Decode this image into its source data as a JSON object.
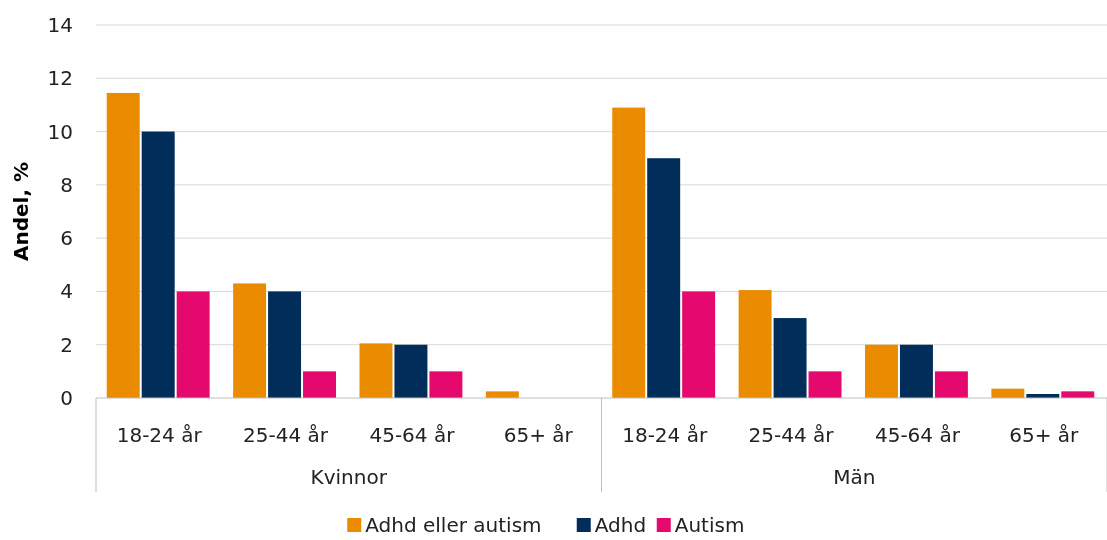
{
  "chart_data": {
    "type": "bar",
    "ylabel": "Andel, %",
    "categories": [
      "18-24 år",
      "25-44 år",
      "45-64 år",
      "65+ år",
      "18-24 år",
      "25-44 år",
      "45-64 år",
      "65+ år"
    ],
    "series": [
      {
        "name": "Adhd eller autism",
        "color": "#eb8c00",
        "values": [
          11.45,
          4.3,
          2.05,
          0.25,
          10.9,
          4.05,
          2,
          0.35
        ]
      },
      {
        "name": "Adhd",
        "color": "#002d5a",
        "values": [
          10,
          4,
          2,
          null,
          9,
          3,
          2,
          0.15
        ]
      },
      {
        "name": "Autism",
        "color": "#e5096e",
        "values": [
          4,
          1,
          1,
          null,
          4,
          1,
          1,
          0.25
        ]
      }
    ],
    "annotations": [
      "Kvinnor",
      "Män"
    ],
    "ylim": [
      0,
      14
    ],
    "yticks": [
      0,
      2,
      4,
      6,
      8,
      10,
      12,
      14
    ],
    "grid": "y",
    "legend": "bottom"
  }
}
